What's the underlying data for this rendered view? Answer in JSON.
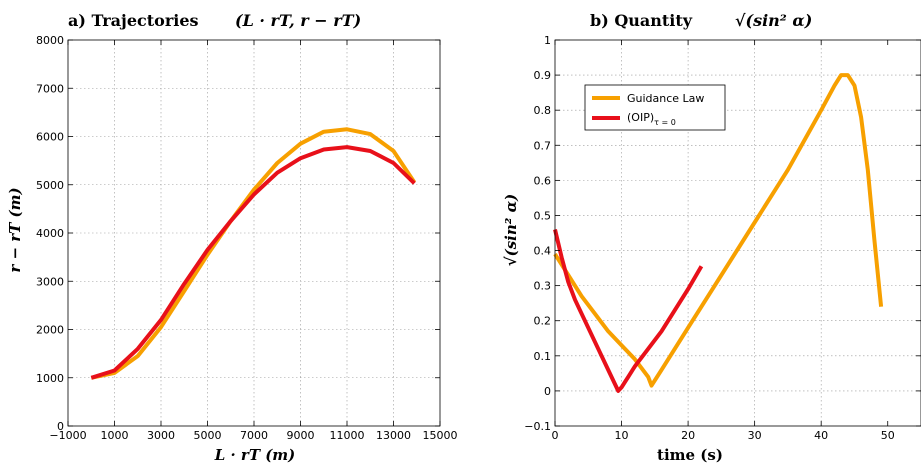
{
  "chart_data": [
    {
      "id": "a",
      "type": "line",
      "title_prefix": "a)  Trajectories",
      "title_math": "(L · rT, r − rT)",
      "xlabel": "L · rT  (m)",
      "ylabel": "r − rT  (m)",
      "xlim": [
        -1000,
        15000
      ],
      "ylim": [
        0,
        8000
      ],
      "xticks": [
        -1000,
        1000,
        3000,
        5000,
        7000,
        9000,
        11000,
        13000,
        15000
      ],
      "xtick_labels": [
        "−1000",
        "1000",
        "3000",
        "5000",
        "7000",
        "9000",
        "11000",
        "13000",
        "15000"
      ],
      "yticks": [
        0,
        1000,
        2000,
        3000,
        4000,
        5000,
        6000,
        7000,
        8000
      ],
      "grid": true,
      "series": [
        {
          "color": "#f7a000",
          "x": [
            0,
            1000,
            2000,
            3000,
            4000,
            5000,
            6000,
            7000,
            8000,
            9000,
            10000,
            11000,
            12000,
            13000,
            13900
          ],
          "y": [
            1000,
            1100,
            1450,
            2050,
            2800,
            3550,
            4250,
            4900,
            5450,
            5850,
            6100,
            6150,
            6050,
            5700,
            5050
          ]
        },
        {
          "color": "#e8101a",
          "x": [
            0,
            1000,
            2000,
            3000,
            4000,
            5000,
            6000,
            7000,
            8000,
            9000,
            10000,
            11000,
            12000,
            13000,
            13900
          ],
          "y": [
            1000,
            1150,
            1600,
            2200,
            2950,
            3650,
            4250,
            4800,
            5250,
            5550,
            5730,
            5780,
            5700,
            5450,
            5030
          ]
        }
      ]
    },
    {
      "id": "b",
      "type": "line",
      "title_prefix": "b)  Quantity",
      "title_math": "√(sin² α)",
      "xlabel": "time  (s)",
      "ylabel": "√(sin² α)",
      "xlim": [
        0,
        55
      ],
      "ylim": [
        -0.1,
        1
      ],
      "xticks": [
        0,
        10,
        20,
        30,
        40,
        50
      ],
      "yticks": [
        -0.1,
        0,
        0.1,
        0.2,
        0.3,
        0.4,
        0.5,
        0.6,
        0.7,
        0.8,
        0.9,
        1
      ],
      "ytick_labels": [
        "−0.1",
        "0",
        "0.1",
        "0.2",
        "0.3",
        "0.4",
        "0.5",
        "0.6",
        "0.7",
        "0.8",
        "0.9",
        "1"
      ],
      "grid": true,
      "legend_position": "top-left",
      "series": [
        {
          "name": "Guidance Law",
          "color": "#f7a000",
          "x": [
            0,
            2,
            4,
            6,
            8,
            10,
            12,
            14,
            14.5,
            16,
            20,
            25,
            30,
            35,
            40,
            42,
            43,
            44,
            45,
            46,
            47,
            48,
            49
          ],
          "y": [
            0.39,
            0.33,
            0.27,
            0.22,
            0.17,
            0.13,
            0.09,
            0.04,
            0.015,
            0.06,
            0.18,
            0.33,
            0.48,
            0.63,
            0.8,
            0.87,
            0.9,
            0.9,
            0.87,
            0.78,
            0.63,
            0.43,
            0.24
          ]
        },
        {
          "name": "(OIP)τ = 0",
          "name_main": "(OIP)",
          "name_sub": "τ = 0",
          "color": "#e8101a",
          "x": [
            0,
            1,
            2,
            3,
            4,
            6,
            8,
            9.5,
            10,
            11,
            12,
            14,
            16,
            18,
            20,
            22
          ],
          "y": [
            0.46,
            0.38,
            0.31,
            0.26,
            0.22,
            0.14,
            0.06,
            0.0,
            0.01,
            0.04,
            0.07,
            0.12,
            0.17,
            0.23,
            0.29,
            0.355
          ]
        }
      ]
    }
  ]
}
